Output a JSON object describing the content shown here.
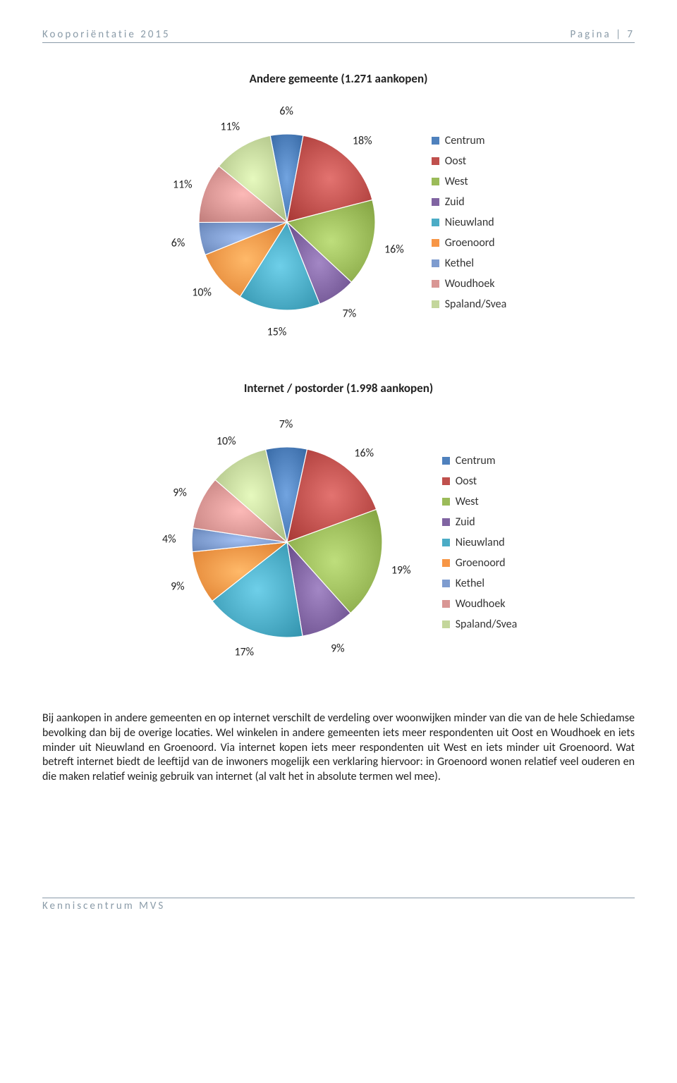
{
  "header": {
    "left": "Kooporiëntatie 2015",
    "right": "Pagina | 7"
  },
  "footer": "Kenniscentrum MVS",
  "legend_labels": [
    "Centrum",
    "Oost",
    "West",
    "Zuid",
    "Nieuwland",
    "Groenoord",
    "Kethel",
    "Woudhoek",
    "Spaland/Svea"
  ],
  "colors": {
    "Centrum": "#4f81bd",
    "Oost": "#c0504d",
    "West": "#9bbb59",
    "Zuid": "#8064a2",
    "Nieuwland": "#4bacc6",
    "Groenoord": "#f79646",
    "Kethel": "#7e9ccf",
    "Woudhoek": "#d99694",
    "Spaland/Svea": "#c3d69b"
  },
  "chart1": {
    "title": "Andere gemeente (1.271 aankopen)",
    "type": "pie",
    "slices": [
      {
        "label": "Centrum",
        "value": 6
      },
      {
        "label": "Oost",
        "value": 18
      },
      {
        "label": "West",
        "value": 16
      },
      {
        "label": "Zuid",
        "value": 7
      },
      {
        "label": "Nieuwland",
        "value": 15
      },
      {
        "label": "Groenoord",
        "value": 10
      },
      {
        "label": "Kethel",
        "value": 6
      },
      {
        "label": "Woudhoek",
        "value": 11
      },
      {
        "label": "Spaland/Svea",
        "value": 11
      }
    ],
    "start_angle_deg": -101,
    "pie_radius": 125,
    "label_radius": 157,
    "label_fontsize": 16
  },
  "chart2": {
    "title": "Internet / postorder (1.998 aankopen)",
    "type": "pie",
    "slices": [
      {
        "label": "Centrum",
        "value": 7
      },
      {
        "label": "Oost",
        "value": 16
      },
      {
        "label": "West",
        "value": 19
      },
      {
        "label": "Zuid",
        "value": 9
      },
      {
        "label": "Nieuwland",
        "value": 17
      },
      {
        "label": "Groenoord",
        "value": 9
      },
      {
        "label": "Kethel",
        "value": 4
      },
      {
        "label": "Woudhoek",
        "value": 9
      },
      {
        "label": "Spaland/Svea",
        "value": 10
      }
    ],
    "start_angle_deg": -103,
    "pie_radius": 135,
    "label_radius": 167,
    "label_fontsize": 16
  },
  "body_text": "Bij aankopen in andere gemeenten en op internet verschilt de verdeling over woonwijken minder van die van de hele Schiedamse bevolking dan bij de overige locaties. Wel winkelen in andere gemeenten iets meer respondenten uit Oost en Woudhoek en iets minder uit Nieuwland en Groenoord. Via internet kopen iets meer respondenten uit West en iets minder uit Groenoord. Wat betreft internet biedt de leeftijd van de inwoners mogelijk een verklaring hiervoor: in Groenoord wonen relatief veel ouderen en die maken relatief weinig gebruik van internet (al valt het in absolute termen wel mee)."
}
